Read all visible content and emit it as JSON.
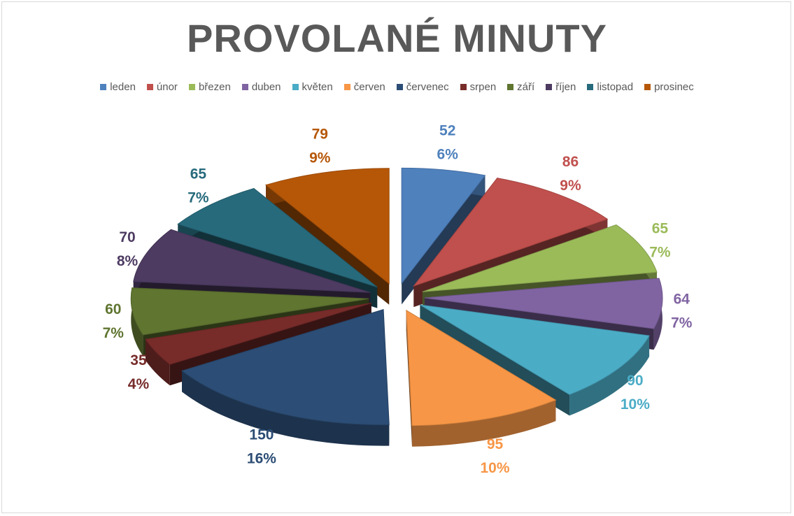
{
  "chart_data": {
    "type": "pie",
    "title": "PROVOLANÉ MINUTY",
    "categories": [
      "leden",
      "únor",
      "březen",
      "duben",
      "květen",
      "červen",
      "červenec",
      "srpen",
      "září",
      "říjen",
      "listopad",
      "prosinec"
    ],
    "values": [
      52,
      86,
      65,
      64,
      90,
      95,
      150,
      35,
      60,
      70,
      65,
      79
    ],
    "percent_labels": [
      "6%",
      "9%",
      "7%",
      "7%",
      "10%",
      "10%",
      "16%",
      "4%",
      "7%",
      "8%",
      "7%",
      "9%"
    ],
    "colors": [
      "#4f81bd",
      "#c0504d",
      "#9bbb59",
      "#8064a2",
      "#4bacc6",
      "#f79646",
      "#2c4d75",
      "#772c2a",
      "#5f7530",
      "#4d3b62",
      "#276a7c",
      "#b65708"
    ],
    "legend_position": "top",
    "style": "3d-exploded"
  }
}
